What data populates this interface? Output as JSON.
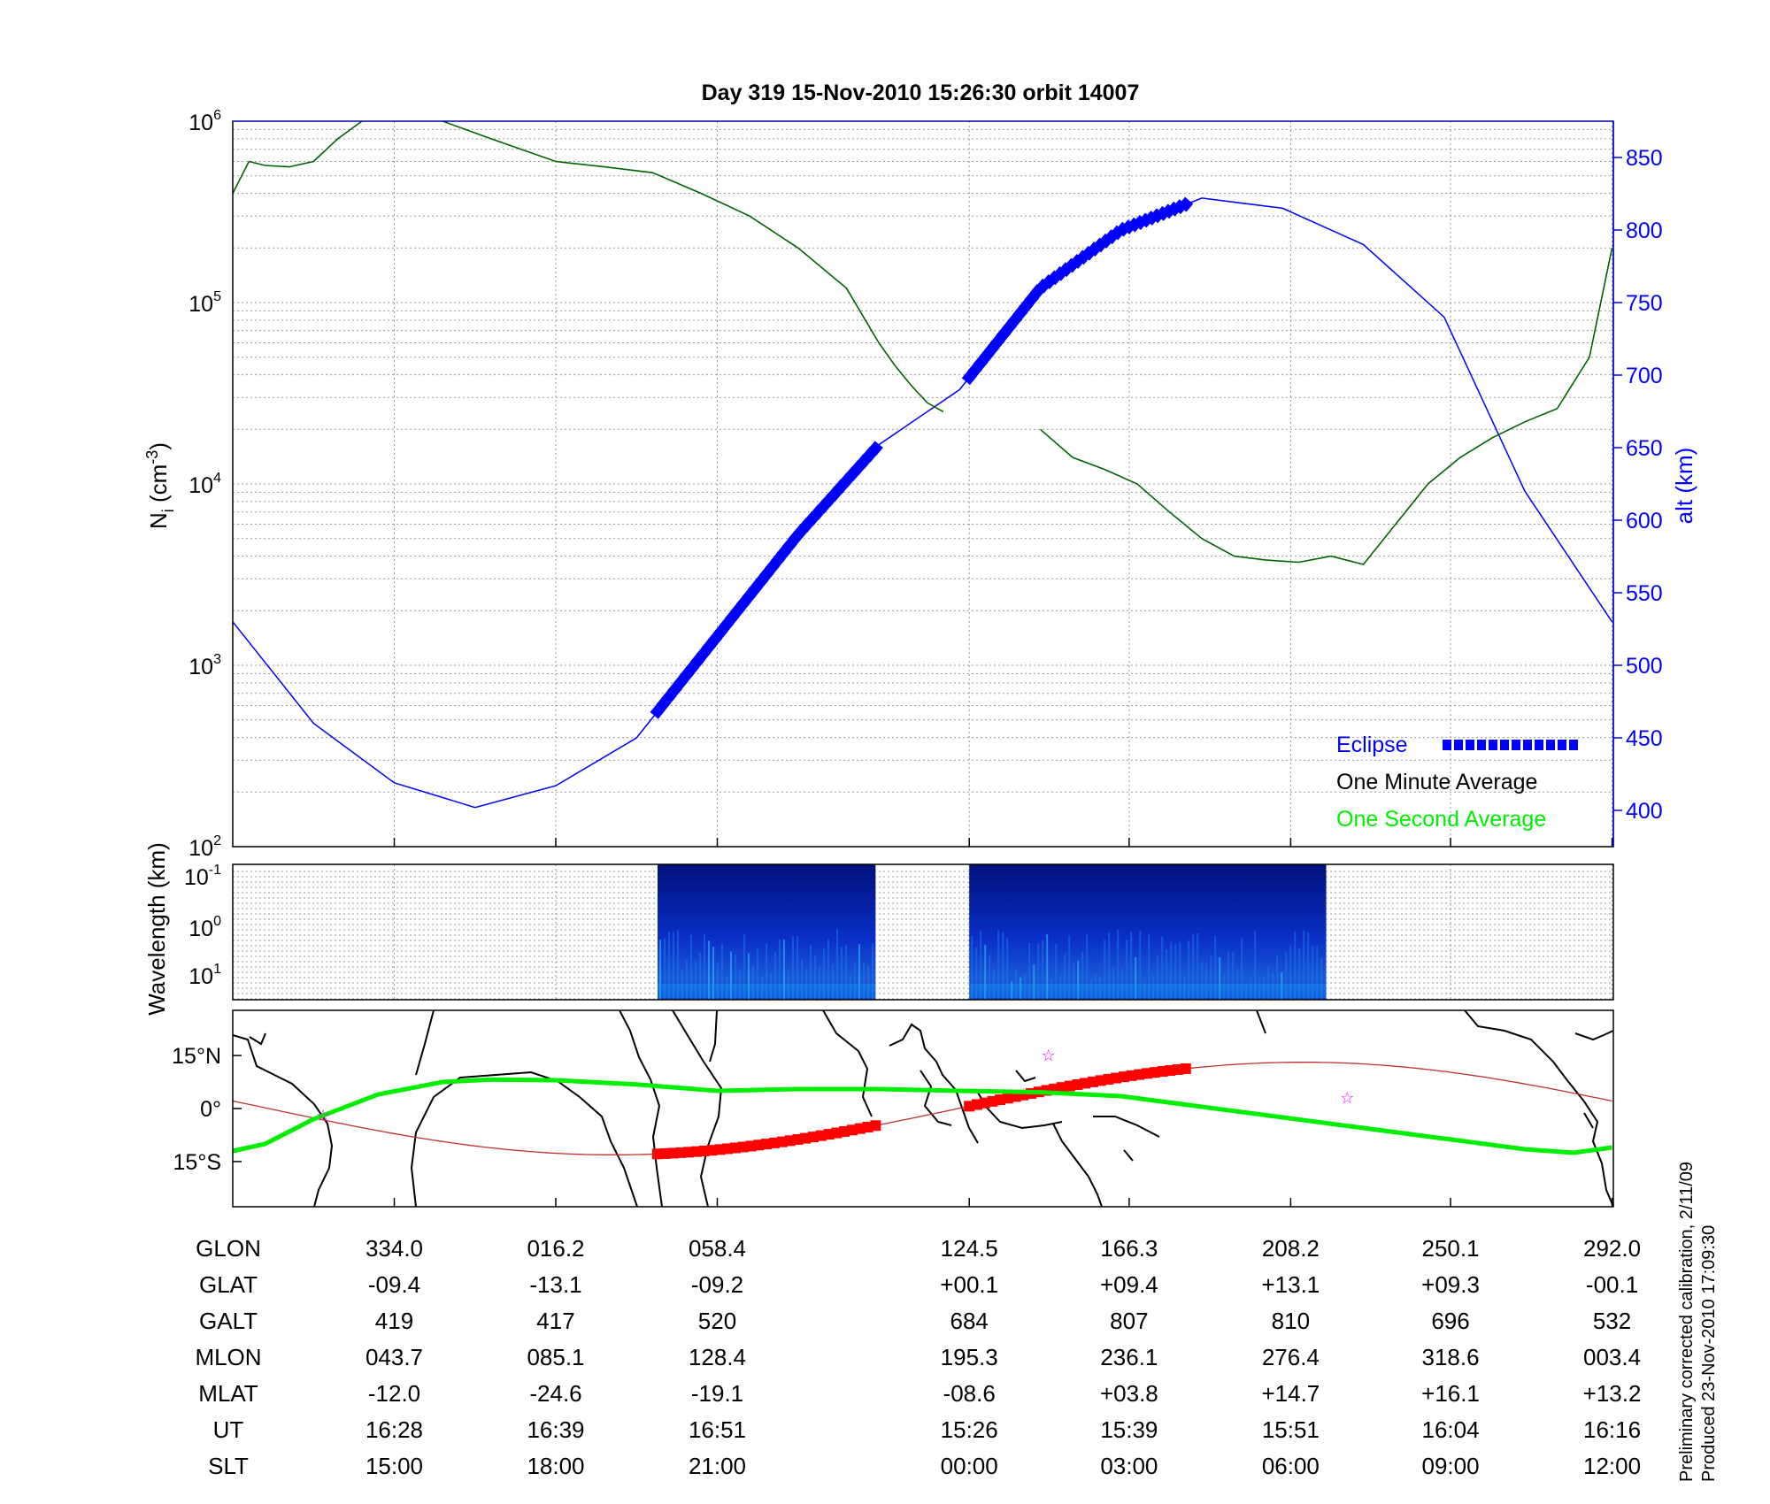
{
  "title": "Day 319  15-Nov-2010 15:26:30   orbit 14007",
  "side_note": {
    "line1": "Preliminary corrected calibration, 2/11/09",
    "line2": "Produced 23-Nov-2010 17:09:30"
  },
  "colors": {
    "density": "#006400",
    "altitude": "#0000ff",
    "eclipse": "#0000ff",
    "one_second": "#00ee00",
    "track": "#ff0000",
    "track_eclipse": "#ff0000",
    "trail": "#00ee00",
    "stars": "#ff00ff"
  },
  "chart_data": [
    {
      "type": "line",
      "panel": "density_altitude",
      "ylabel": "N",
      "ylabel_sub": "i",
      "ylabel_unit": " (cm",
      "ylabel_exp": "-3",
      "ylabel_close": ")",
      "y2label": "alt (km)",
      "yscale": "log",
      "ylim": [
        100,
        1000000
      ],
      "y2lim": [
        375,
        875
      ],
      "grid": true,
      "x_ticks_index": [
        1,
        2,
        3,
        4.56,
        5.55,
        6.55,
        7.54,
        8.54
      ],
      "y_ticks": [
        {
          "base": "10",
          "exp": "2",
          "value": 100
        },
        {
          "base": "10",
          "exp": "3",
          "value": 1000
        },
        {
          "base": "10",
          "exp": "4",
          "value": 10000
        },
        {
          "base": "10",
          "exp": "5",
          "value": 100000
        },
        {
          "base": "10",
          "exp": "6",
          "value": 1000000
        }
      ],
      "y2_ticks": [
        "400",
        "450",
        "500",
        "550",
        "600",
        "650",
        "700",
        "750",
        "800",
        "850"
      ],
      "legend": {
        "position": "bottom-right",
        "eclipse": "Eclipse",
        "one_minute": "One Minute Average",
        "one_second": "One Second Average"
      },
      "series": [
        {
          "name": "One Minute Average",
          "x_index": [
            0,
            0.1,
            0.2,
            0.35,
            0.5,
            0.65,
            0.8,
            1.0,
            1.3,
            1.6,
            2.0,
            2.3,
            2.6,
            2.9,
            3.2,
            3.5,
            3.8,
            4.0,
            4.1,
            4.2,
            4.3,
            4.4,
            4.6,
            4.8,
            5.0,
            5.2,
            5.4,
            5.6,
            5.8,
            6.0,
            6.2,
            6.4,
            6.6,
            6.8,
            7.0,
            7.2,
            7.4,
            7.6,
            7.8,
            8.0,
            8.2,
            8.4,
            8.54
          ],
          "values": [
            400000,
            600000,
            570000,
            560000,
            600000,
            800000,
            1000000,
            null,
            1000000,
            800000,
            600000,
            560000,
            520000,
            400000,
            300000,
            200000,
            120000,
            60000,
            45000,
            35000,
            28000,
            25000,
            null,
            null,
            20000,
            14000,
            12000,
            10000,
            7000,
            5000,
            4000,
            3800,
            3700,
            4000,
            3600,
            6000,
            10000,
            14000,
            18000,
            22000,
            26000,
            50000,
            200000
          ]
        },
        {
          "name": "alt (km)",
          "x_index": [
            0,
            0.5,
            1.0,
            1.5,
            2.0,
            2.5,
            3.0,
            3.5,
            4.0,
            4.5,
            5.0,
            5.5,
            6.0,
            6.5,
            7.0,
            7.5,
            8.0,
            8.54
          ],
          "values": [
            530,
            460,
            419,
            402,
            417,
            450,
            520,
            590,
            652,
            690,
            760,
            800,
            822,
            815,
            790,
            740,
            620,
            530
          ]
        }
      ]
    },
    {
      "type": "heatmap",
      "panel": "spectrogram",
      "ylabel": "Wavelength (km)",
      "y_ticks": [
        {
          "base": "10",
          "exp": "-1"
        },
        {
          "base": "10",
          "exp": "0"
        },
        {
          "base": "10",
          "exp": "1"
        }
      ],
      "data_segments_index": [
        [
          2.63,
          3.98
        ],
        [
          4.56,
          6.77
        ]
      ]
    },
    {
      "type": "map",
      "panel": "ground_track",
      "y_ticks": [
        "15°N",
        "0°",
        "15°S"
      ],
      "ylim": [
        -25,
        25
      ]
    }
  ],
  "table": {
    "row_labels": [
      "GLON",
      "GLAT",
      "GALT",
      "MLON",
      "MLAT",
      "UT",
      "SLT"
    ],
    "columns": [
      [
        "334.0",
        "-09.4",
        "419",
        "043.7",
        "-12.0",
        "16:28",
        "15:00"
      ],
      [
        "016.2",
        "-13.1",
        "417",
        "085.1",
        "-24.6",
        "16:39",
        "18:00"
      ],
      [
        "058.4",
        "-09.2",
        "520",
        "128.4",
        "-19.1",
        "16:51",
        "21:00"
      ],
      [
        "124.5",
        "+00.1",
        "684",
        "195.3",
        "-08.6",
        "15:26",
        "00:00"
      ],
      [
        "166.3",
        "+09.4",
        "807",
        "236.1",
        "+03.8",
        "15:39",
        "03:00"
      ],
      [
        "208.2",
        "+13.1",
        "810",
        "276.4",
        "+14.7",
        "15:51",
        "06:00"
      ],
      [
        "250.1",
        "+09.3",
        "696",
        "318.6",
        "+16.1",
        "16:04",
        "09:00"
      ],
      [
        "292.0",
        "-00.1",
        "532",
        "003.4",
        "+13.2",
        "16:16",
        "12:00"
      ]
    ]
  }
}
